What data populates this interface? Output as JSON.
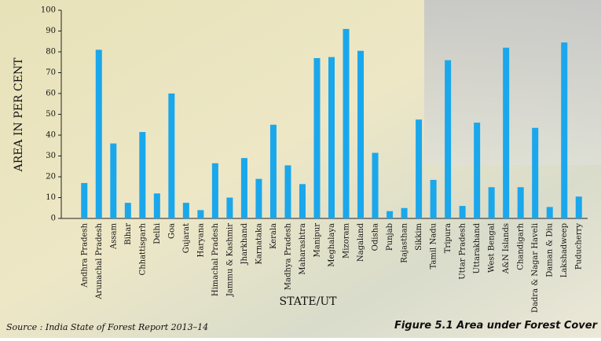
{
  "chart_data": {
    "type": "bar",
    "title": "Figure 5.1 Area under Forest Cover",
    "source": "Source : India State of Forest Report 2013–14",
    "y_label": "AREA IN PER CENT",
    "x_label": "STATE/UT",
    "color": "#1aa7ec",
    "categories": [
      "Andhra Pradesh",
      "Arunachal Pradesh",
      "Assam",
      "Bihar",
      "Chhattisgarh",
      "Delhi",
      "Goa",
      "Gujarat",
      "Haryana",
      "Himachal Pradesh",
      "Jammu & Kashmir",
      "Jharkhand",
      "Karnataka",
      "Kerala",
      "Madhya Pradesh",
      "Maharashtra",
      "Manipur",
      "Meghalaya",
      "Mizoram",
      "Nagaland",
      "Odisha",
      "Punjab",
      "Rajasthan",
      "Sikkim",
      "Tamil Nadu",
      "Tripura",
      "Uttar Pradesh",
      "Uttarakhand",
      "West Bengal",
      "A&N Islands",
      "Chandigarh",
      "Dadra & Nagar Haveli",
      "Daman & Diu",
      "Lakshadweep",
      "Puducherry"
    ],
    "values": [
      17,
      81,
      36,
      7.5,
      41.5,
      12,
      60,
      7.5,
      4,
      26.5,
      10,
      29,
      19,
      45,
      25.5,
      16.5,
      77,
      77.5,
      91,
      80.5,
      31.5,
      3.5,
      5,
      47.5,
      18.5,
      76,
      6,
      46,
      15,
      82,
      15,
      43.5,
      5.5,
      84.5,
      10.5
    ],
    "ylim": [
      0,
      100
    ],
    "yticks": [
      0,
      10,
      20,
      30,
      40,
      50,
      60,
      70,
      80,
      90,
      100
    ]
  }
}
